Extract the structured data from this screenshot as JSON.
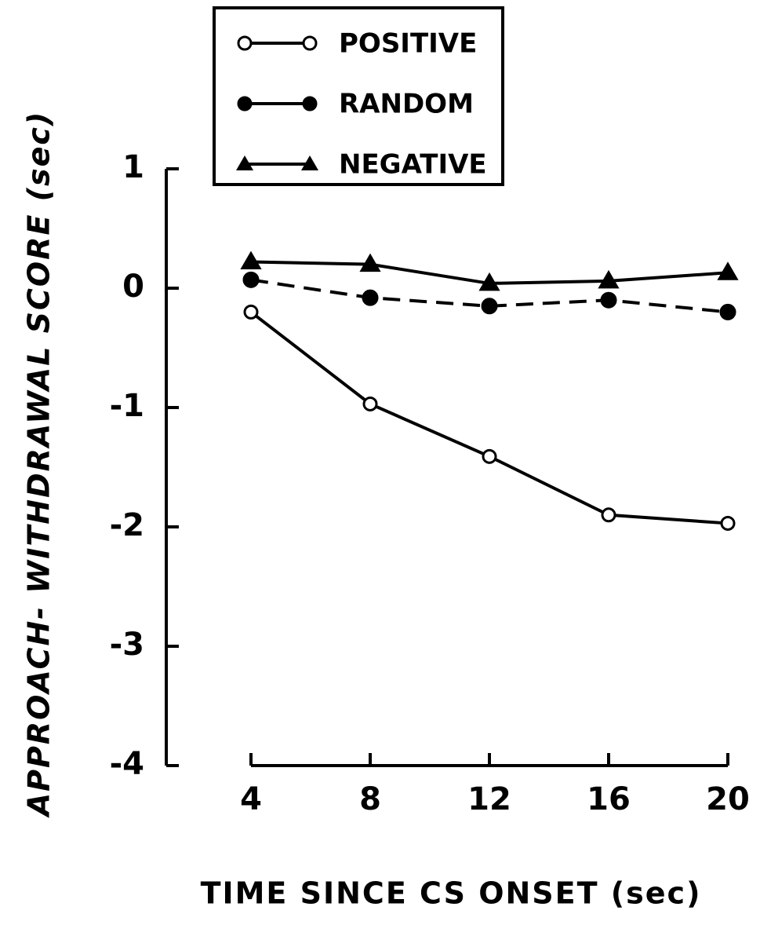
{
  "chart_data": {
    "type": "line",
    "xlabel": "TIME SINCE CS ONSET (sec)",
    "ylabel": "APPROACH- WITHDRAWAL SCORE (sec)",
    "x": [
      4,
      8,
      12,
      16,
      20
    ],
    "xlim": [
      4,
      20
    ],
    "xticks": [
      4,
      8,
      12,
      16,
      20
    ],
    "ylim": [
      -4,
      1
    ],
    "yticks": [
      1,
      0,
      -1,
      -2,
      -3,
      -4
    ],
    "series": [
      {
        "name": "POSITIVE",
        "color": "#000000",
        "marker": "open-circle",
        "linestyle": "solid",
        "values": [
          -0.2,
          -0.97,
          -1.41,
          -1.9,
          -1.97
        ]
      },
      {
        "name": "RANDOM",
        "color": "#000000",
        "marker": "circle",
        "linestyle": "dashed",
        "values": [
          0.07,
          -0.08,
          -0.15,
          -0.1,
          -0.2
        ]
      },
      {
        "name": "NEGATIVE",
        "color": "#000000",
        "marker": "triangle",
        "linestyle": "solid",
        "values": [
          0.22,
          0.2,
          0.04,
          0.06,
          0.13
        ]
      }
    ]
  }
}
